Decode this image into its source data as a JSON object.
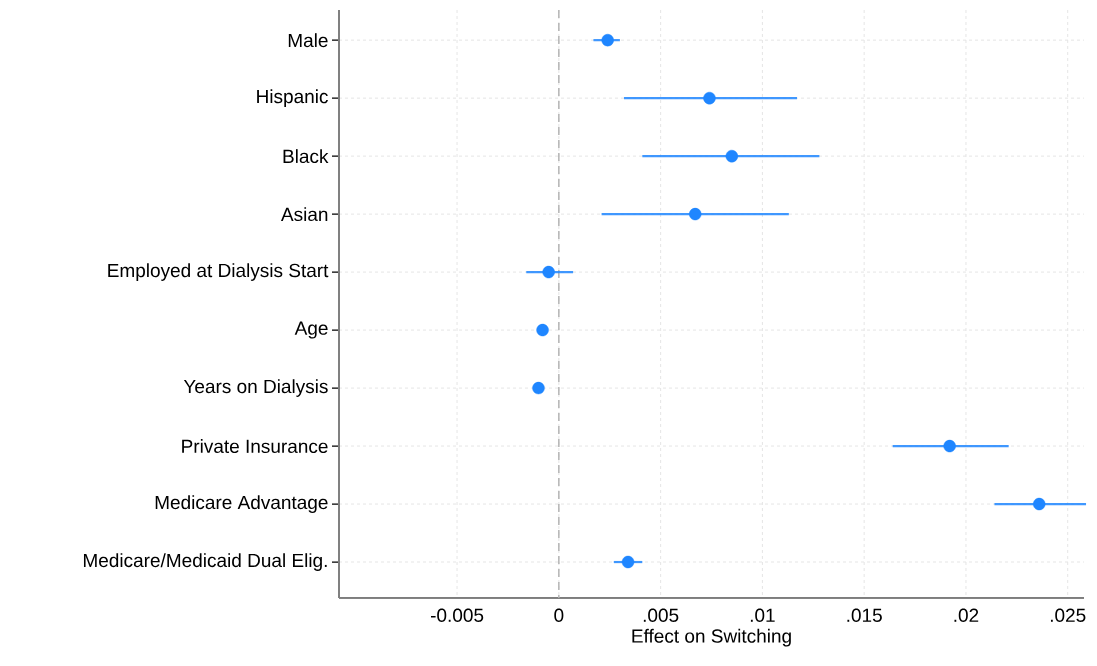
{
  "chart_data": {
    "type": "scatter",
    "orientation": "horizontal",
    "xlabel": "Effect on Switching",
    "categories": [
      "Male",
      "Hispanic",
      "Black",
      "Asian",
      "Employed at Dialysis Start",
      "Age",
      "Years on Dialysis",
      "Private Insurance",
      "Medicare Advantage",
      "Medicare/Medicaid Dual Elig."
    ],
    "values": [
      0.0024,
      0.0074,
      0.0085,
      0.0067,
      -0.0005,
      -0.0008,
      -0.001,
      0.0192,
      0.0236,
      0.0034
    ],
    "errors": [
      [
        0.0017,
        0.003
      ],
      [
        0.0032,
        0.0117
      ],
      [
        0.0041,
        0.0128
      ],
      [
        0.0021,
        0.0113
      ],
      [
        -0.0016,
        0.0007
      ],
      null,
      null,
      [
        0.0164,
        0.0221
      ],
      [
        0.0214,
        0.0259
      ],
      [
        0.0027,
        0.0041
      ]
    ],
    "color": "#1f86ff",
    "xlim": [
      -0.0108,
      0.0258
    ],
    "xticks": [
      {
        "value": -0.005,
        "label": "-0.005"
      },
      0,
      {
        "value": 0.005,
        "label": ".005"
      },
      {
        "value": 0.01,
        "label": ".01"
      },
      {
        "value": 0.015,
        "label": ".015"
      },
      {
        "value": 0.02,
        "label": ".02"
      },
      {
        "value": 0.025,
        "label": ".025"
      }
    ],
    "ref_lines": [
      {
        "axis": "x",
        "value": 0,
        "color": "#b4b4b4",
        "line_style": "dashed"
      }
    ],
    "grid": true,
    "marker": "circle"
  }
}
